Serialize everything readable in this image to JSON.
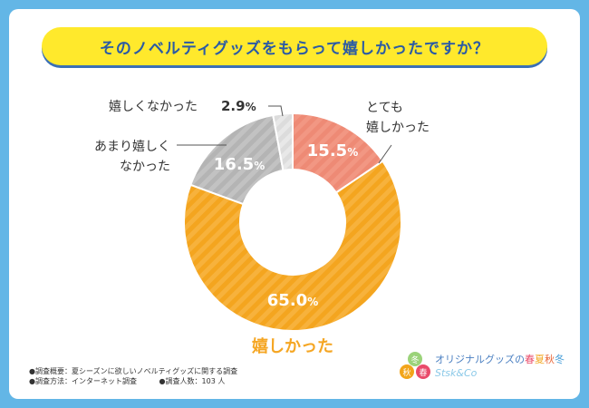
{
  "chart_data": {
    "type": "pie",
    "title": "そのノベルティグッズをもらって嬉しかったですか？",
    "categories": [
      "とても嬉しかった",
      "嬉しかった",
      "あまり嬉しくなかった",
      "嬉しくなかった"
    ],
    "values": [
      15.5,
      65.0,
      16.5,
      2.9
    ],
    "value_labels": [
      "15.5",
      "65.0",
      "16.5",
      "2.9"
    ],
    "percent_sign": "%",
    "colors": [
      "#ee8a75",
      "#f5a623",
      "#b7b7b7",
      "#dedede"
    ],
    "outside_labels": {
      "very_happy_line1": "とても",
      "very_happy_line2": "嬉しかった",
      "happy": "嬉しかった",
      "not_very_line1": "あまり嬉しく",
      "not_very_line2": "なかった",
      "not_happy": "嬉しくなかった"
    }
  },
  "notes": {
    "overview": "●調査概要：夏シーズンに欲しいノベルティグッズに関する調査",
    "method": "●調査方法：インターネット調査",
    "count": "●調査人数：103 人"
  },
  "logo": {
    "line1_a": "オリジナルグッズの",
    "s1": "春",
    "s2": "夏",
    "s3": "秋",
    "s4": "冬",
    "line2": "Stsk&Co",
    "badge_chars": [
      "冬",
      "秋",
      "春"
    ]
  }
}
